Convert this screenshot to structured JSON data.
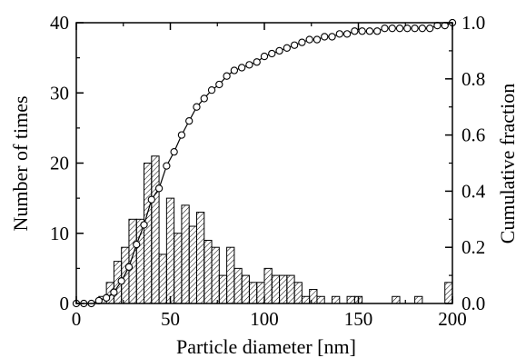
{
  "chart_data": {
    "type": "bar",
    "subtype": "histogram-with-cumulative-line",
    "xlabel": "Particle diameter [nm]",
    "ylabel_left": "Number of times",
    "ylabel_right": "Cumulative fraction",
    "xlim": [
      0,
      200
    ],
    "ylim_left": [
      0,
      40
    ],
    "ylim_right": [
      0.0,
      1.0
    ],
    "x_ticks": [
      0,
      50,
      100,
      150,
      200
    ],
    "y_left_ticks": [
      0,
      10,
      20,
      30,
      40
    ],
    "y_right_ticks": [
      "0.0",
      "0.2",
      "0.4",
      "0.6",
      "0.8",
      "1.0"
    ],
    "grid": false,
    "bar_width": 4,
    "bar_fill": "diagonal-hatch",
    "histogram": {
      "bin_start": [
        0,
        4,
        8,
        12,
        16,
        20,
        24,
        28,
        32,
        36,
        40,
        44,
        48,
        52,
        56,
        60,
        64,
        68,
        72,
        76,
        80,
        84,
        88,
        92,
        96,
        100,
        104,
        108,
        112,
        116,
        120,
        124,
        128,
        132,
        136,
        140,
        144,
        148,
        152,
        156,
        160,
        164,
        168,
        172,
        176,
        180,
        184,
        188,
        192,
        196
      ],
      "counts": [
        0,
        0,
        0,
        1,
        3,
        6,
        8,
        12,
        12,
        20,
        21,
        7,
        15,
        10,
        14,
        11,
        13,
        9,
        8,
        4,
        8,
        5,
        4,
        3,
        3,
        5,
        4,
        4,
        4,
        3,
        1,
        2,
        1,
        0,
        1,
        0,
        1,
        1,
        0,
        0,
        0,
        0,
        1,
        0,
        0,
        1,
        0,
        0,
        0,
        3
      ]
    },
    "cumulative": {
      "x": [
        0,
        4,
        8,
        12,
        16,
        20,
        24,
        28,
        32,
        36,
        40,
        44,
        48,
        52,
        56,
        60,
        64,
        68,
        72,
        76,
        80,
        84,
        88,
        92,
        96,
        100,
        104,
        108,
        112,
        116,
        120,
        124,
        128,
        132,
        136,
        140,
        144,
        148,
        152,
        156,
        160,
        164,
        168,
        172,
        176,
        180,
        184,
        188,
        192,
        196,
        200
      ],
      "y": [
        0,
        0,
        0,
        0.01,
        0.02,
        0.04,
        0.08,
        0.13,
        0.21,
        0.28,
        0.37,
        0.41,
        0.49,
        0.54,
        0.6,
        0.65,
        0.7,
        0.73,
        0.76,
        0.78,
        0.81,
        0.83,
        0.84,
        0.85,
        0.86,
        0.88,
        0.89,
        0.9,
        0.91,
        0.92,
        0.93,
        0.94,
        0.94,
        0.95,
        0.95,
        0.96,
        0.96,
        0.97,
        0.97,
        0.97,
        0.97,
        0.98,
        0.98,
        0.98,
        0.98,
        0.98,
        0.98,
        0.98,
        0.99,
        0.99,
        1.0
      ]
    }
  }
}
